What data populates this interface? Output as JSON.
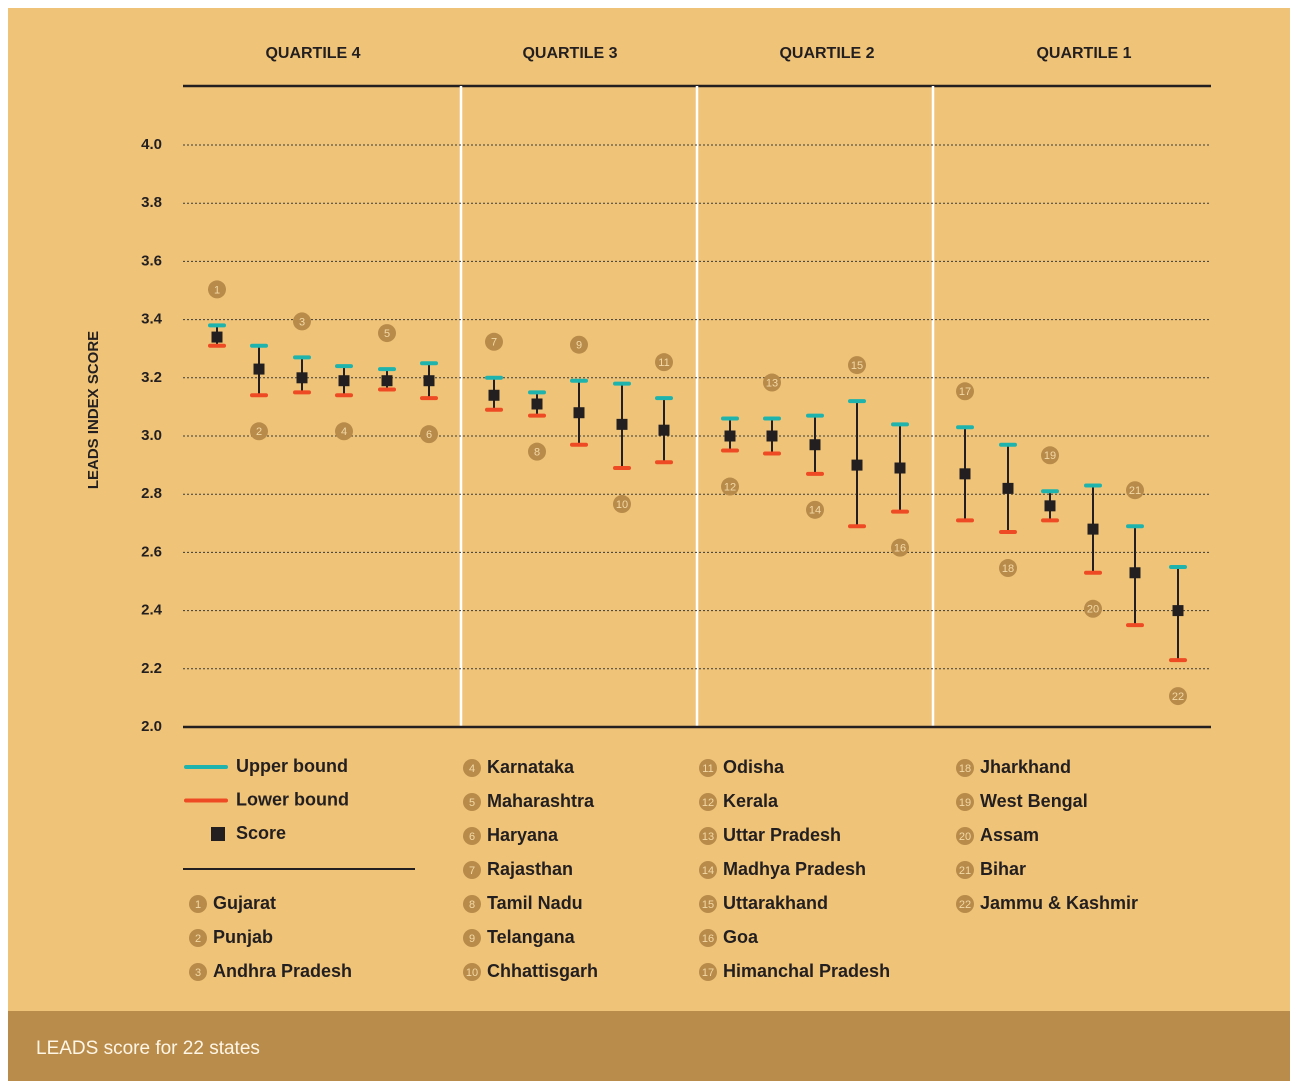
{
  "chart_data": {
    "type": "errorbar",
    "y_label": "LEADS INDEX SCORE",
    "caption": "LEADS score for 22 states",
    "quartiles": [
      "QUARTILE 4",
      "QUARTILE 3",
      "QUARTILE 2",
      "QUARTILE 1"
    ],
    "categories": [
      "1",
      "2",
      "3",
      "4",
      "5",
      "6",
      "7",
      "8",
      "9",
      "10",
      "11",
      "12",
      "13",
      "14",
      "15",
      "16",
      "17",
      "18",
      "19",
      "20",
      "21",
      "22"
    ],
    "states": [
      "Gujarat",
      "Punjab",
      "Andhra Pradesh",
      "Karnataka",
      "Maharashtra",
      "Haryana",
      "Rajasthan",
      "Tamil Nadu",
      "Telangana",
      "Chhattisgarh",
      "Odisha",
      "Kerala",
      "Uttar Pradesh",
      "Madhya Pradesh",
      "Uttarakhand",
      "Goa",
      "Himanchal Pradesh",
      "Jharkhand",
      "West Bengal",
      "Assam",
      "Bihar",
      "Jammu & Kashmir"
    ],
    "series": [
      {
        "name": "Upper bound",
        "color": "#1fb3ad",
        "values": [
          3.38,
          3.31,
          3.27,
          3.24,
          3.23,
          3.25,
          3.2,
          3.15,
          3.19,
          3.18,
          3.13,
          3.06,
          3.06,
          3.07,
          3.12,
          3.04,
          3.03,
          2.97,
          2.81,
          2.83,
          2.69,
          2.55
        ]
      },
      {
        "name": "Lower bound",
        "color": "#ee4a23",
        "values": [
          3.31,
          3.14,
          3.15,
          3.14,
          3.16,
          3.13,
          3.09,
          3.07,
          2.97,
          2.89,
          2.91,
          2.95,
          2.94,
          2.87,
          2.69,
          2.74,
          2.71,
          2.67,
          2.71,
          2.53,
          2.35,
          2.23
        ]
      },
      {
        "name": "Score",
        "color": "#231f20",
        "values": [
          3.34,
          3.23,
          3.2,
          3.19,
          3.19,
          3.19,
          3.14,
          3.11,
          3.08,
          3.04,
          3.02,
          3.0,
          3.0,
          2.97,
          2.9,
          2.89,
          2.87,
          2.82,
          2.76,
          2.68,
          2.53,
          2.4
        ]
      }
    ],
    "ylim": [
      2.0,
      4.0
    ],
    "yticks": [
      {
        "value": 2.0,
        "label": "2.0"
      },
      2.2,
      2.4,
      2.6,
      2.8,
      {
        "value": 3.0,
        "label": "3.0"
      },
      3.2,
      3.4,
      3.6,
      3.8,
      {
        "value": 4.0,
        "label": "4.0"
      }
    ],
    "grid": true
  }
}
